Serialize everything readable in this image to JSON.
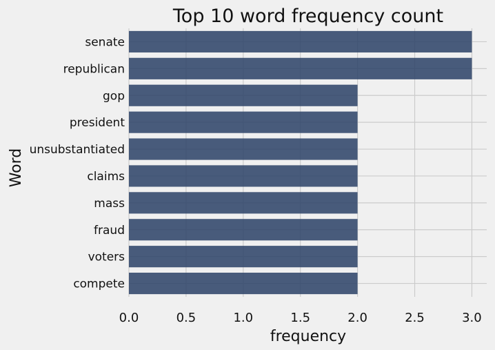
{
  "chart_data": {
    "type": "bar",
    "orientation": "horizontal",
    "title": "Top 10 word frequency count",
    "xlabel": "frequency",
    "ylabel": "Word",
    "categories": [
      "senate",
      "republican",
      "gop",
      "president",
      "unsubstantiated",
      "claims",
      "mass",
      "fraud",
      "voters",
      "compete"
    ],
    "values": [
      3,
      3,
      2,
      2,
      2,
      2,
      2,
      2,
      2,
      2
    ],
    "xlim": [
      0,
      3.13
    ],
    "xticks": [
      "0.0",
      "0.5",
      "1.0",
      "1.5",
      "2.0",
      "2.5",
      "3.0"
    ],
    "grid": true,
    "legend": "none",
    "colors": {
      "bar": "#30466a",
      "background": "#f0f0f0",
      "grid": "#cbcbcb"
    }
  }
}
